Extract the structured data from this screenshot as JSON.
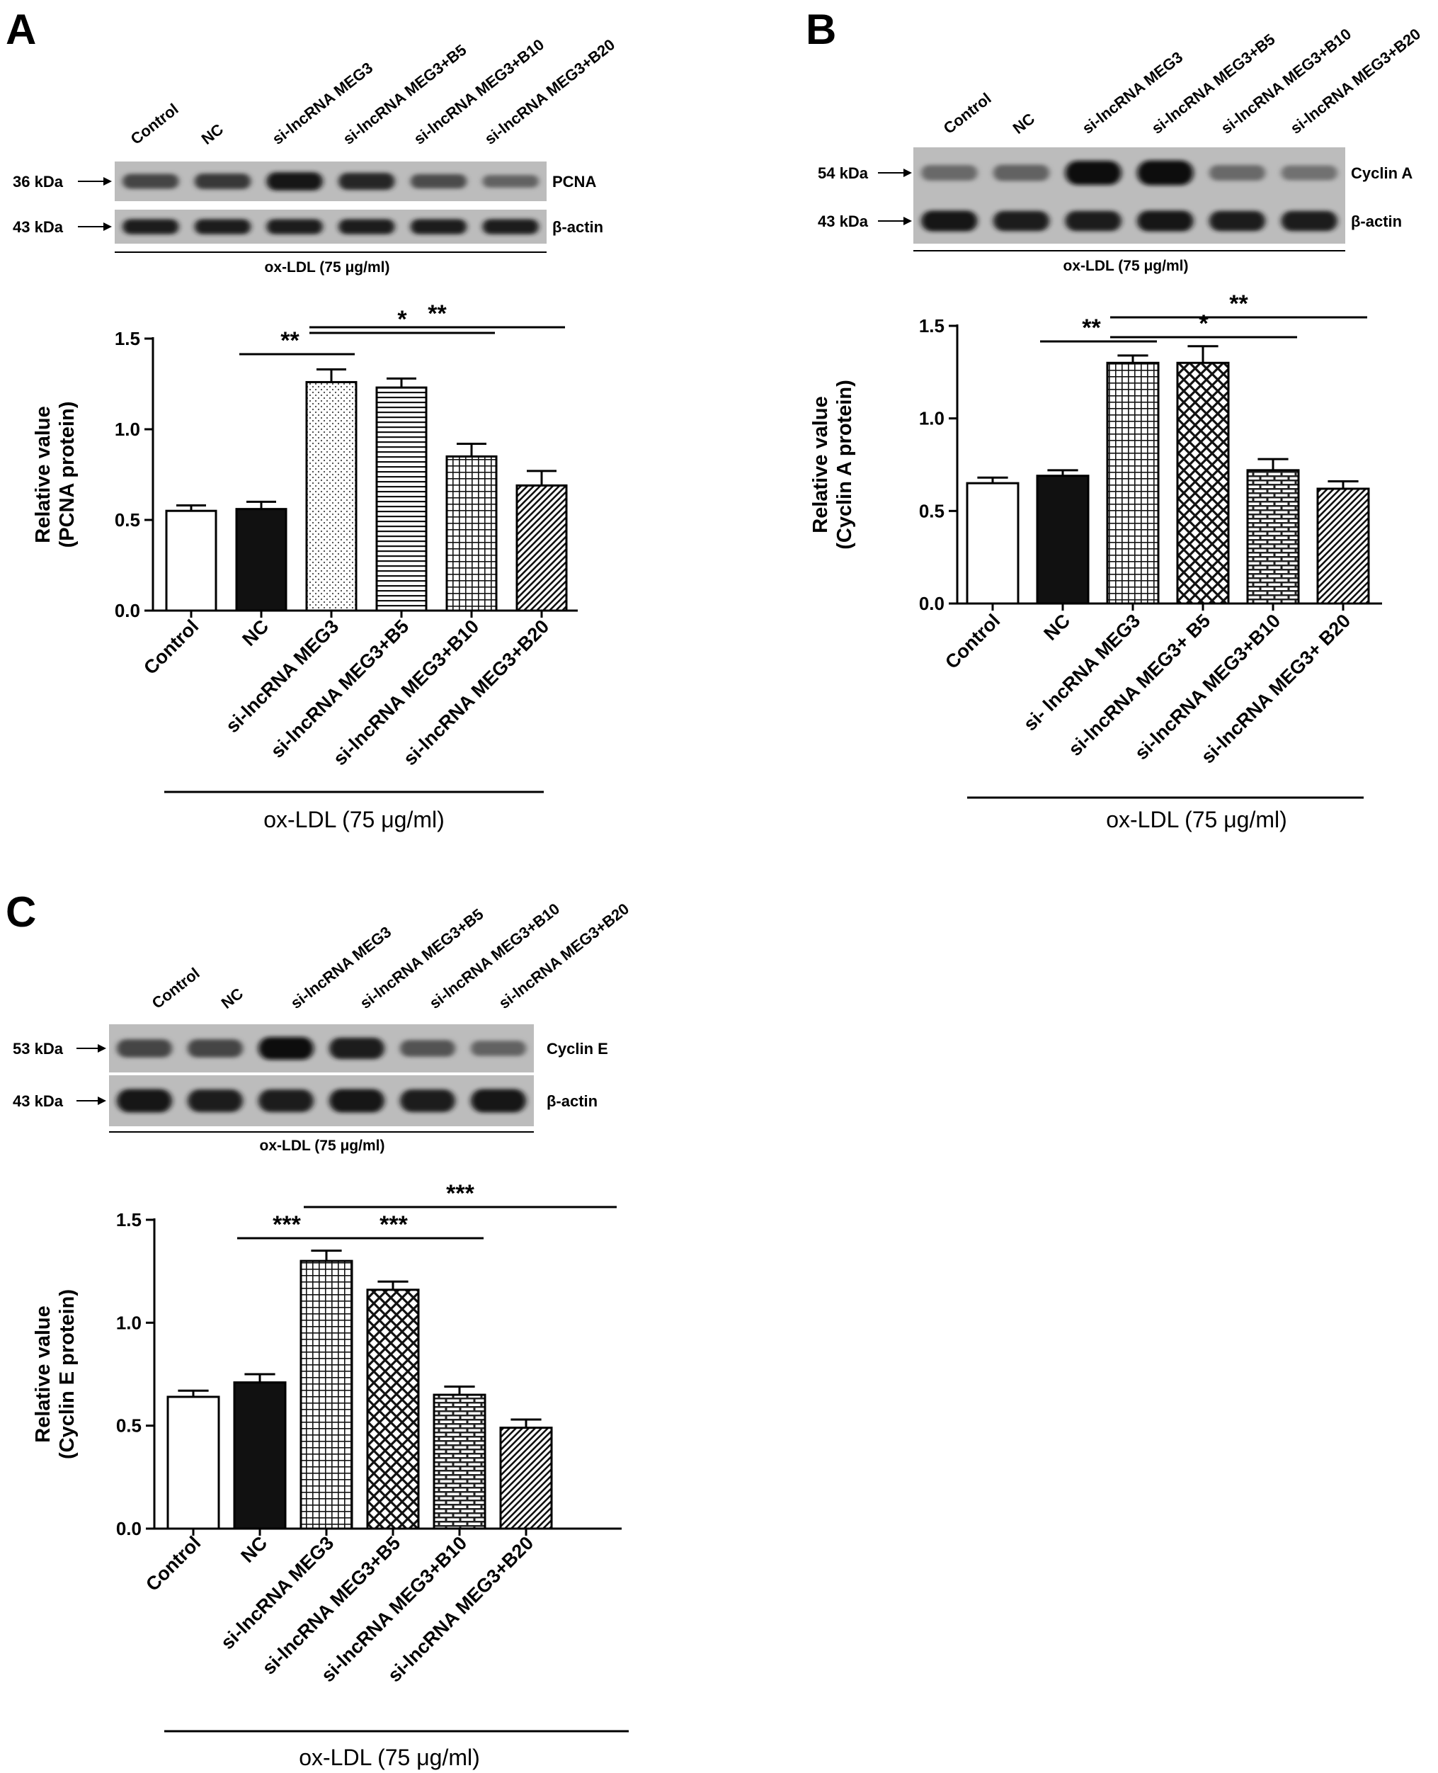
{
  "panels": [
    {
      "letter": "A",
      "blot": {
        "lanes": [
          "Control",
          "NC",
          "si-lncRNA MEG3",
          "si-lncRNA MEG3+B5",
          "si-lncRNA MEG3+B10",
          "si-lncRNA MEG3+B20"
        ],
        "rows": [
          {
            "kda": "36 kDa",
            "protein": "PCNA",
            "intensity": [
              0.55,
              0.62,
              0.85,
              0.75,
              0.5,
              0.35
            ]
          },
          {
            "kda": "43 kDa",
            "protein": "β-actin",
            "intensity": [
              0.8,
              0.8,
              0.8,
              0.8,
              0.8,
              0.8
            ]
          }
        ],
        "treatment": "ox-LDL (75 μg/ml)"
      },
      "chart_data": {
        "type": "bar",
        "categories": [
          "Control",
          "NC",
          "si-lncRNA MEG3",
          "si-lncRNA MEG3+B5",
          "si-lncRNA MEG3+B10",
          "si-lncRNA MEG3+B20"
        ],
        "values": [
          0.55,
          0.56,
          1.26,
          1.23,
          0.85,
          0.69
        ],
        "errors": [
          0.03,
          0.04,
          0.07,
          0.05,
          0.07,
          0.08
        ],
        "patterns": [
          "white",
          "black",
          "dots",
          "hlines",
          "grid",
          "diag"
        ],
        "ylabel": "Relative value",
        "ylabel2": "(PCNA protein)",
        "ylim": [
          0,
          1.5
        ],
        "yticks": [
          "0.0",
          "0.5",
          "1.0",
          "1.5"
        ],
        "treatment": "ox-LDL (75 μg/ml)",
        "significance": [
          {
            "from": 1,
            "to": 2,
            "label": "**"
          },
          {
            "from": 2,
            "to": 4,
            "label": "*"
          },
          {
            "from": 2,
            "to": 5,
            "label": "**"
          }
        ]
      }
    },
    {
      "letter": "B",
      "blot": {
        "lanes": [
          "Control",
          "NC",
          "si-lncRNA MEG3",
          "si-lncRNA MEG3+B5",
          "si-lncRNA MEG3+B10",
          "si-lncRNA MEG3+B20"
        ],
        "rows": [
          {
            "kda": "54 kDa",
            "protein": "Cyclin A",
            "intensity": [
              0.3,
              0.35,
              0.9,
              0.95,
              0.3,
              0.25
            ]
          },
          {
            "kda": "43 kDa",
            "protein": "β-actin",
            "intensity": [
              0.85,
              0.8,
              0.8,
              0.85,
              0.8,
              0.8
            ]
          }
        ],
        "treatment": "ox-LDL (75 μg/ml)"
      },
      "chart_data": {
        "type": "bar",
        "categories": [
          "Control",
          "NC",
          "si- lncRNA MEG3",
          "si-lncRNA MEG3+ B5",
          "si-lncRNA MEG3+B10",
          "si-lncRNA MEG3+ B20"
        ],
        "values": [
          0.65,
          0.69,
          1.3,
          1.3,
          0.72,
          0.62
        ],
        "errors": [
          0.03,
          0.03,
          0.04,
          0.09,
          0.06,
          0.04
        ],
        "patterns": [
          "white",
          "black",
          "grid",
          "cross",
          "brick",
          "diag"
        ],
        "ylabel": "Relative value",
        "ylabel2": "(Cyclin A protein)",
        "ylim": [
          0,
          1.5
        ],
        "yticks": [
          "0.0",
          "0.5",
          "1.0",
          "1.5"
        ],
        "treatment": "ox-LDL (75 μg/ml)",
        "significance": [
          {
            "from": 1,
            "to": 2,
            "label": "**"
          },
          {
            "from": 2,
            "to": 4,
            "label": "*"
          },
          {
            "from": 2,
            "to": 5,
            "label": "**"
          }
        ]
      }
    },
    {
      "letter": "C",
      "blot": {
        "lanes": [
          "Control",
          "NC",
          "si-lncRNA MEG3",
          "si-lncRNA MEG3+B5",
          "si-lncRNA MEG3+B10",
          "si-lncRNA MEG3+B20"
        ],
        "rows": [
          {
            "kda": "53 kDa",
            "protein": "Cyclin E",
            "intensity": [
              0.55,
              0.55,
              0.9,
              0.8,
              0.45,
              0.35
            ]
          },
          {
            "kda": "43 kDa",
            "protein": "β-actin",
            "intensity": [
              0.85,
              0.8,
              0.8,
              0.85,
              0.8,
              0.85
            ]
          }
        ],
        "treatment": "ox-LDL (75 μg/ml)"
      },
      "chart_data": {
        "type": "bar",
        "categories": [
          "Control",
          "NC",
          "si-lncRNA MEG3",
          "si-lncRNA MEG3+B5",
          "si-lncRNA MEG3+B10",
          "si-lncRNA MEG3+B20"
        ],
        "values": [
          0.64,
          0.71,
          1.3,
          1.16,
          0.65,
          0.49
        ],
        "errors": [
          0.03,
          0.04,
          0.05,
          0.04,
          0.04,
          0.04
        ],
        "patterns": [
          "white",
          "black",
          "grid",
          "cross",
          "brick",
          "diag"
        ],
        "ylabel": "Relative value",
        "ylabel2": "(Cyclin E protein)",
        "ylim": [
          0,
          1.5
        ],
        "yticks": [
          "0.0",
          "0.5",
          "1.0",
          "1.5"
        ],
        "treatment": "ox-LDL (75 μg/ml)",
        "significance": [
          {
            "from": 1,
            "to": 2,
            "label": "***"
          },
          {
            "from": 2,
            "to": 4,
            "label": "***"
          },
          {
            "from": 2,
            "to": 6,
            "label": "***"
          }
        ]
      }
    }
  ]
}
